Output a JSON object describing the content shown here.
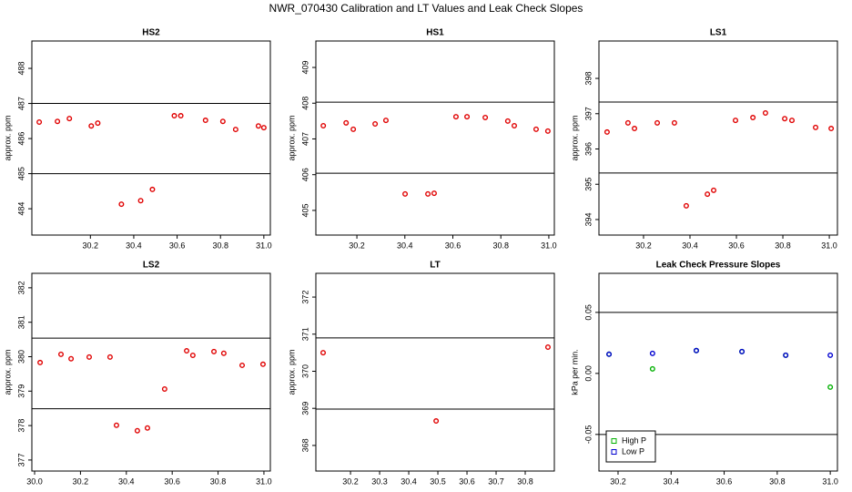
{
  "title": "NWR_070430  Calibration and LT Values and Leak Check Slopes",
  "chart_data": [
    {
      "type": "scatter",
      "title": "HS2",
      "y_label": "approx. ppm",
      "xlim": [
        29.93,
        31.03
      ],
      "ylim": [
        483.25,
        488.78
      ],
      "xticks": [
        30.2,
        30.4,
        30.6,
        30.8,
        {
          "value": 31,
          "label": "31.0"
        }
      ],
      "yticks": [
        484,
        485,
        486,
        487,
        488
      ],
      "hlines": [
        487,
        485
      ],
      "series": [
        {
          "color": "#e00000",
          "marker": "circle",
          "x": [
            29.964,
            30.048,
            30.103,
            30.204,
            30.234,
            30.343,
            30.432,
            30.486,
            30.587,
            30.617,
            30.731,
            30.811,
            30.87,
            30.975,
            31.0
          ],
          "values": [
            486.47,
            486.49,
            486.57,
            486.36,
            486.44,
            484.13,
            484.23,
            484.55,
            486.65,
            486.65,
            486.52,
            486.49,
            486.26,
            486.36,
            486.31
          ]
        }
      ]
    },
    {
      "type": "scatter",
      "title": "HS1",
      "y_label": "approx. ppm",
      "xlim": [
        30.029,
        31.023
      ],
      "ylim": [
        404.31,
        409.74
      ],
      "xticks": [
        30.2,
        30.4,
        30.6,
        30.8,
        {
          "value": 31,
          "label": "31.0"
        }
      ],
      "yticks": [
        405,
        406,
        407,
        408,
        409
      ],
      "hlines": [
        408.03,
        406.04
      ],
      "series": [
        {
          "color": "#e00000",
          "marker": "circle",
          "x": [
            30.06,
            30.155,
            30.185,
            30.276,
            30.321,
            30.401,
            30.496,
            30.522,
            30.613,
            30.659,
            30.735,
            30.829,
            30.856,
            30.947,
            30.996
          ],
          "values": [
            407.37,
            407.45,
            407.27,
            407.42,
            407.52,
            405.46,
            405.46,
            405.48,
            407.62,
            407.62,
            407.6,
            407.5,
            407.37,
            407.27,
            407.22
          ]
        }
      ]
    },
    {
      "type": "scatter",
      "title": "LS1",
      "y_label": "approx. ppm",
      "xlim": [
        30.008,
        31.035
      ],
      "ylim": [
        393.56,
        399.06
      ],
      "xticks": [
        30.2,
        30.4,
        30.6,
        30.8,
        {
          "value": 31,
          "label": "31.0"
        }
      ],
      "yticks": [
        394,
        395,
        396,
        397,
        398
      ],
      "hlines": [
        397.33,
        395.32
      ],
      "series": [
        {
          "color": "#e00000",
          "marker": "circle",
          "x": [
            30.043,
            30.133,
            30.161,
            30.259,
            30.333,
            30.384,
            30.475,
            30.502,
            30.596,
            30.671,
            30.725,
            30.808,
            30.839,
            30.941,
            31.008
          ],
          "values": [
            396.48,
            396.74,
            396.58,
            396.74,
            396.74,
            394.39,
            394.72,
            394.83,
            396.81,
            396.89,
            397.02,
            396.86,
            396.81,
            396.61,
            396.58
          ]
        }
      ]
    },
    {
      "type": "scatter",
      "title": "LS2",
      "y_label": "approx. ppm",
      "xlim": [
        29.988,
        31.028
      ],
      "ylim": [
        376.68,
        382.42
      ],
      "xticks": [
        {
          "value": 30,
          "label": "30.0"
        },
        30.2,
        30.4,
        30.6,
        30.8,
        {
          "value": 31,
          "label": "31.0"
        }
      ],
      "yticks": [
        377,
        378,
        379,
        380,
        381,
        382
      ],
      "hlines": [
        380.54,
        378.49
      ],
      "series": [
        {
          "color": "#e00000",
          "marker": "circle",
          "x": [
            30.024,
            30.115,
            30.159,
            30.238,
            30.329,
            30.357,
            30.448,
            30.492,
            30.567,
            30.663,
            30.69,
            30.782,
            30.825,
            30.905,
            30.996
          ],
          "values": [
            379.83,
            380.07,
            379.94,
            379.99,
            379.99,
            378.01,
            377.85,
            377.93,
            379.06,
            380.17,
            380.04,
            380.15,
            380.1,
            379.75,
            379.78
          ]
        }
      ]
    },
    {
      "type": "scatter",
      "title": "LT",
      "y_label": "approx. ppm",
      "xlim": [
        30.081,
        30.9
      ],
      "ylim": [
        367.31,
        372.64
      ],
      "xticks": [
        30.2,
        30.3,
        30.4,
        30.5,
        30.6,
        30.7,
        30.8
      ],
      "yticks": [
        368,
        369,
        370,
        371,
        372
      ],
      "hlines": [
        370.9,
        368.98
      ],
      "series": [
        {
          "color": "#e00000",
          "marker": "circle",
          "x": [
            30.106,
            30.494,
            30.878
          ],
          "values": [
            370.5,
            368.66,
            370.65
          ]
        }
      ]
    },
    {
      "type": "scatter",
      "title": "Leak Check Pressure Slopes",
      "y_label": "kPa per min.",
      "xlim": [
        30.128,
        31.027
      ],
      "ylim": [
        -0.08,
        0.082
      ],
      "xticks": [
        30.2,
        30.4,
        30.6,
        30.8,
        {
          "value": 31,
          "label": "31.0"
        }
      ],
      "yticks": [
        -0.05,
        {
          "value": 0,
          "label": "0.00"
        },
        0.05
      ],
      "hlines": [
        0.05,
        -0.05
      ],
      "legend": "bottom-left",
      "series": [
        {
          "name": "High P",
          "color": "#00b000",
          "marker": "circle",
          "x": [
            30.166,
            30.33,
            30.495,
            30.667,
            30.832,
            31.0
          ],
          "values": [
            0.0157,
            0.0037,
            0.0187,
            0.0179,
            0.0149,
            -0.0112
          ]
        },
        {
          "name": "Low P",
          "color": "#0000d0",
          "marker": "circle",
          "x": [
            30.166,
            30.33,
            30.495,
            30.667,
            30.832,
            31.0
          ],
          "values": [
            0.0157,
            0.0164,
            0.0187,
            0.0179,
            0.0149,
            0.0149
          ]
        }
      ]
    }
  ]
}
